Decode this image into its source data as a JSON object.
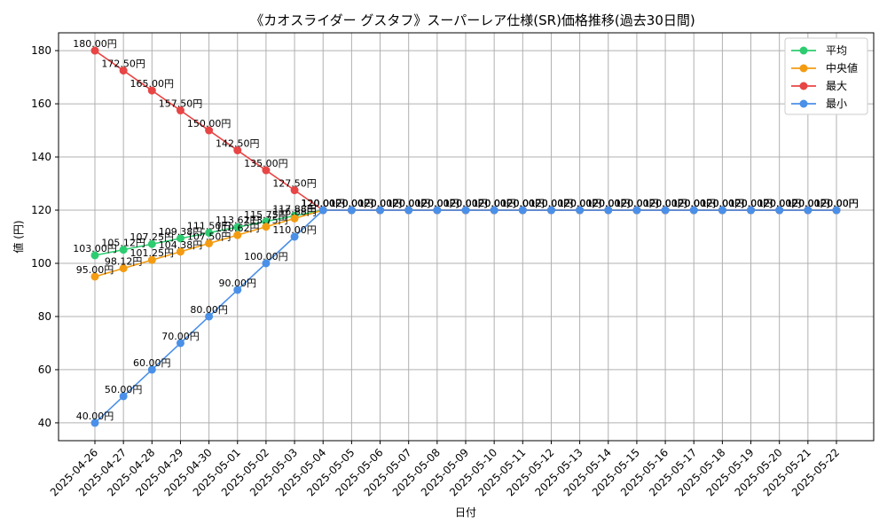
{
  "chart_data": {
    "type": "line",
    "title": "《カオスライダー グスタフ》スーパーレア仕様(SR)価格推移(過去30日間)",
    "xlabel": "日付",
    "ylabel": "値 (円)",
    "ylim": [
      33.3,
      186.7
    ],
    "yticks": [
      40,
      60,
      80,
      100,
      120,
      140,
      160,
      180
    ],
    "grid": true,
    "legend_position": "top-right",
    "label_suffix": "円",
    "categories": [
      "2025-04-26",
      "2025-04-27",
      "2025-04-28",
      "2025-04-29",
      "2025-04-30",
      "2025-05-01",
      "2025-05-02",
      "2025-05-03",
      "2025-05-04",
      "2025-05-05",
      "2025-05-06",
      "2025-05-07",
      "2025-05-08",
      "2025-05-09",
      "2025-05-10",
      "2025-05-11",
      "2025-05-12",
      "2025-05-13",
      "2025-05-14",
      "2025-05-15",
      "2025-05-16",
      "2025-05-17",
      "2025-05-18",
      "2025-05-19",
      "2025-05-20",
      "2025-05-21",
      "2025-05-22"
    ],
    "series": [
      {
        "name": "平均",
        "color": "#2ecc71",
        "values": [
          103.0,
          105.12,
          107.25,
          109.38,
          111.5,
          113.62,
          115.75,
          117.88,
          120,
          120,
          120,
          120,
          120,
          120,
          120,
          120,
          120,
          120,
          120,
          120,
          120,
          120,
          120,
          120,
          120,
          120,
          120
        ]
      },
      {
        "name": "中央値",
        "color": "#f39c12",
        "values": [
          95.0,
          98.12,
          101.25,
          104.38,
          107.5,
          110.62,
          113.75,
          116.88,
          120,
          120,
          120,
          120,
          120,
          120,
          120,
          120,
          120,
          120,
          120,
          120,
          120,
          120,
          120,
          120,
          120,
          120,
          120
        ]
      },
      {
        "name": "最大",
        "color": "#e84545",
        "values": [
          180.0,
          172.5,
          165.0,
          157.5,
          150.0,
          142.5,
          135.0,
          127.5,
          120,
          120,
          120,
          120,
          120,
          120,
          120,
          120,
          120,
          120,
          120,
          120,
          120,
          120,
          120,
          120,
          120,
          120,
          120
        ]
      },
      {
        "name": "最小",
        "color": "#4a90e8",
        "values": [
          40.0,
          50.0,
          60.0,
          70.0,
          80.0,
          90.0,
          100.0,
          110.0,
          120,
          120,
          120,
          120,
          120,
          120,
          120,
          120,
          120,
          120,
          120,
          120,
          120,
          120,
          120,
          120,
          120,
          120,
          120
        ]
      }
    ]
  }
}
